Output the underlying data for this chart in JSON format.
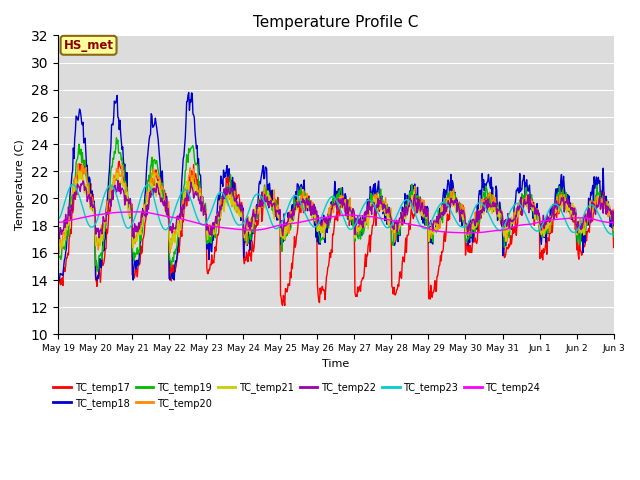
{
  "title": "Temperature Profile C",
  "xlabel": "Time",
  "ylabel": "Temperature (C)",
  "ylim": [
    10,
    32
  ],
  "yticks": [
    10,
    12,
    14,
    16,
    18,
    20,
    22,
    24,
    26,
    28,
    30,
    32
  ],
  "background_color": "#dcdcdc",
  "annotation_text": "HS_met",
  "annotation_color": "#8B0000",
  "annotation_bg": "#ffff99",
  "annotation_border": "#8B6914",
  "series_colors": {
    "TC_temp17": "#ff0000",
    "TC_temp18": "#0000cc",
    "TC_temp19": "#00bb00",
    "TC_temp20": "#ff8800",
    "TC_temp21": "#cccc00",
    "TC_temp22": "#9900aa",
    "TC_temp23": "#00cccc",
    "TC_temp24": "#ff00ff"
  },
  "tick_labels": [
    "May 19",
    "May 20",
    "May 21",
    "May 22",
    "May 23",
    "May 24",
    "May 25",
    "May 26",
    "May 27",
    "May 28",
    "May 29",
    "May 30",
    "May 31",
    "Jun 1",
    "Jun 2",
    "Jun 3"
  ]
}
